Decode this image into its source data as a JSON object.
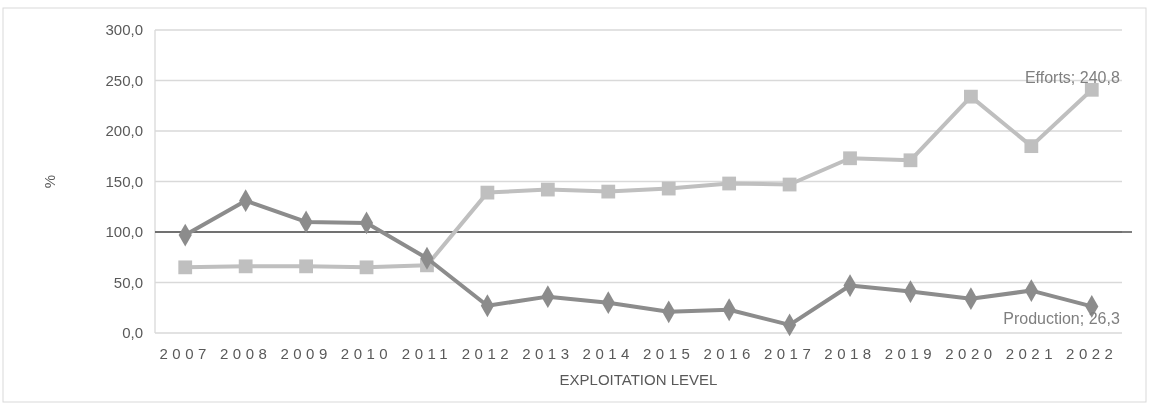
{
  "chart_data": {
    "type": "line",
    "xlabel": "EXPLOITATION LEVEL",
    "ylabel": "%",
    "categories": [
      "2007",
      "2008",
      "2009",
      "2010",
      "2011",
      "2012",
      "2013",
      "2014",
      "2015",
      "2016",
      "2017",
      "2018",
      "2019",
      "2020",
      "2021",
      "2022"
    ],
    "series": [
      {
        "name": "Production",
        "color": "#8c8c8c",
        "marker": "diamond",
        "values": [
          97,
          131,
          110,
          109,
          74,
          27,
          36,
          30,
          21,
          23,
          8,
          47,
          41,
          34,
          42,
          26.3
        ],
        "value_labels": [
          null,
          null,
          null,
          null,
          null,
          null,
          null,
          null,
          null,
          null,
          null,
          null,
          null,
          null,
          null,
          "; 26,3"
        ]
      },
      {
        "name": "Efforts",
        "color": "#bfbfbf",
        "marker": "square",
        "values": [
          65,
          66,
          66,
          65,
          67,
          139,
          142,
          140,
          143,
          148,
          147,
          173,
          171,
          234,
          185,
          240.8
        ],
        "value_labels": [
          null,
          null,
          null,
          null,
          null,
          null,
          null,
          null,
          null,
          null,
          null,
          null,
          null,
          null,
          null,
          "; 240,8"
        ]
      }
    ],
    "ylim": [
      0,
      300
    ],
    "yticks": [
      {
        "value": 0,
        "label": "0,0"
      },
      {
        "value": 50,
        "label": "50,0"
      },
      {
        "value": 100,
        "label": "100,0"
      },
      {
        "value": 150,
        "label": "150,0"
      },
      {
        "value": 200,
        "label": "200,0"
      },
      {
        "value": 250,
        "label": "250,0"
      },
      {
        "value": 300,
        "label": "300,0"
      }
    ],
    "grid": "y",
    "legend": false,
    "line_style": "solid",
    "ref_lines": [
      {
        "axis": "y",
        "value": 100,
        "color": "#000000"
      }
    ]
  }
}
